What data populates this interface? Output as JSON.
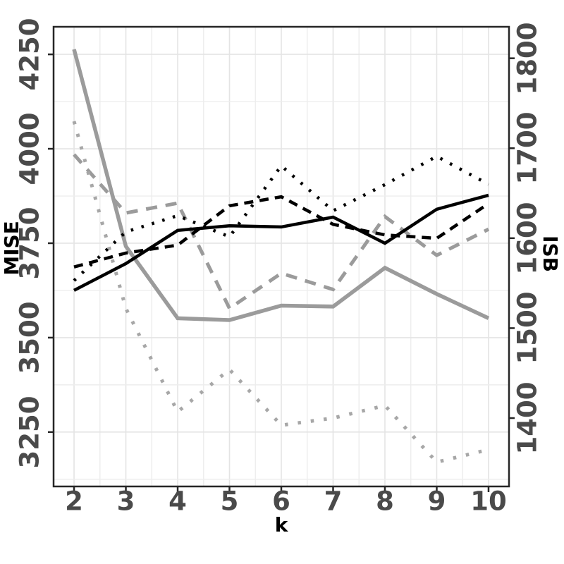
{
  "chart_data": {
    "type": "line",
    "title": "",
    "xlabel": "k",
    "ylabel_left": "MISE",
    "ylabel_right": "ISB",
    "x": [
      2,
      3,
      4,
      5,
      6,
      7,
      8,
      9,
      10
    ],
    "x_ticks": [
      "2",
      "3",
      "4",
      "5",
      "6",
      "7",
      "8",
      "9",
      "10"
    ],
    "left_ticks": [
      "4250",
      "4000",
      "3750",
      "3500",
      "3250"
    ],
    "left_tick_values": [
      4250,
      4000,
      3750,
      3500,
      3250
    ],
    "right_ticks": [
      "1800",
      "1700",
      "1600",
      "1500",
      "1400"
    ],
    "right_tick_values": [
      1800,
      1700,
      1600,
      1500,
      1400
    ],
    "x_range": [
      1.605,
      10.395
    ],
    "left_range": [
      3106,
      4323
    ],
    "right_range": [
      1324,
      1835
    ],
    "grid": {
      "major_color": "#e4e4e4",
      "minor_color": "#ededed",
      "minor": true
    },
    "legend_position": "none",
    "series": [
      {
        "id": "gray-solid",
        "axis": "right",
        "style": "solid",
        "color": "#9b9b9b",
        "width": 5.5,
        "dash": [],
        "values": [
          1810,
          1591,
          1511,
          1509,
          1525,
          1524,
          1567,
          1538,
          1511
        ]
      },
      {
        "id": "gray-dashed",
        "axis": "right",
        "style": "dashed",
        "color": "#9b9b9b",
        "width": 5,
        "dash": [
          16,
          12
        ],
        "values": [
          1693,
          1628,
          1639,
          1522,
          1561,
          1543,
          1624,
          1581,
          1610
        ]
      },
      {
        "id": "gray-dotted",
        "axis": "right",
        "style": "dotted",
        "color": "#a7a7a7",
        "width": 5,
        "dash": [
          4.5,
          14
        ],
        "values": [
          1730,
          1522,
          1407,
          1454,
          1392,
          1400,
          1414,
          1351,
          1365
        ]
      },
      {
        "id": "black-dotted",
        "axis": "left",
        "style": "dotted",
        "color": "#000000",
        "width": 4.5,
        "dash": [
          3.5,
          12
        ],
        "values": [
          3651,
          3780,
          3823,
          3767,
          3955,
          3836,
          3905,
          3980,
          3906
        ]
      },
      {
        "id": "black-dashed",
        "axis": "left",
        "style": "dashed",
        "color": "#000000",
        "width": 4.5,
        "dash": [
          13,
          9
        ],
        "values": [
          3687,
          3724,
          3745,
          3849,
          3873,
          3800,
          3772,
          3763,
          3855
        ]
      },
      {
        "id": "black-solid",
        "axis": "left",
        "style": "solid",
        "color": "#000000",
        "width": 4.5,
        "dash": [],
        "values": [
          3625,
          3696,
          3784,
          3796,
          3793,
          3819,
          3750,
          3840,
          3877
        ]
      }
    ]
  },
  "frame": {
    "border_color": "#262626",
    "tick_color": "#262626"
  }
}
